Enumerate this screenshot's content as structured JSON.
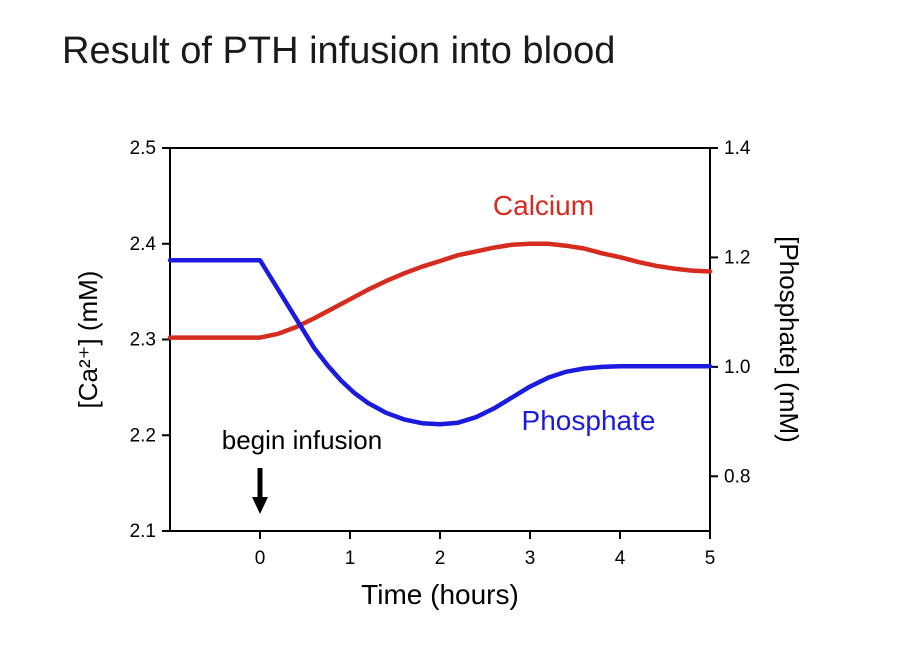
{
  "chart_data": {
    "type": "line",
    "title": "Result of PTH infusion into blood",
    "xlabel": "Time (hours)",
    "x_axis": {
      "lim": [
        -1,
        5
      ],
      "ticks": [
        0,
        1,
        2,
        3,
        4,
        5
      ]
    },
    "left_axis": {
      "label": "[Ca²⁺] (mM)",
      "lim": [
        2.1,
        2.5
      ],
      "ticks": [
        2.1,
        2.2,
        2.3,
        2.4,
        2.5
      ]
    },
    "right_axis": {
      "label": "[Phosphate] (mM)",
      "lim": [
        0.7,
        1.4
      ],
      "ticks": [
        0.8,
        1.0,
        1.2,
        1.4
      ]
    },
    "annotation": {
      "text": "begin infusion",
      "x": 0
    },
    "legend_position": "inline-labels",
    "grid": false,
    "series": [
      {
        "name": "Calcium",
        "axis": "left",
        "color": "#d62b1f",
        "label_pos": {
          "x": 3.15,
          "y": 2.43
        },
        "points": [
          [
            -1,
            2.302
          ],
          [
            -0.5,
            2.302
          ],
          [
            0,
            2.302
          ],
          [
            0.2,
            2.306
          ],
          [
            0.4,
            2.313
          ],
          [
            0.6,
            2.322
          ],
          [
            0.8,
            2.332
          ],
          [
            1.0,
            2.342
          ],
          [
            1.2,
            2.352
          ],
          [
            1.4,
            2.361
          ],
          [
            1.6,
            2.369
          ],
          [
            1.8,
            2.376
          ],
          [
            2.0,
            2.382
          ],
          [
            2.2,
            2.388
          ],
          [
            2.4,
            2.392
          ],
          [
            2.6,
            2.396
          ],
          [
            2.8,
            2.399
          ],
          [
            3.0,
            2.4
          ],
          [
            3.2,
            2.4
          ],
          [
            3.4,
            2.398
          ],
          [
            3.6,
            2.395
          ],
          [
            3.8,
            2.39
          ],
          [
            4.0,
            2.386
          ],
          [
            4.2,
            2.381
          ],
          [
            4.4,
            2.377
          ],
          [
            4.6,
            2.374
          ],
          [
            4.8,
            2.372
          ],
          [
            5.0,
            2.371
          ]
        ]
      },
      {
        "name": "Phosphate",
        "axis": "right",
        "color": "#1b1be0",
        "label_pos": {
          "x": 3.65,
          "y": 0.885
        },
        "points": [
          [
            -1,
            1.195
          ],
          [
            -0.5,
            1.195
          ],
          [
            0,
            1.195
          ],
          [
            0.15,
            1.155
          ],
          [
            0.3,
            1.115
          ],
          [
            0.45,
            1.075
          ],
          [
            0.6,
            1.035
          ],
          [
            0.75,
            1.003
          ],
          [
            0.9,
            0.975
          ],
          [
            1.05,
            0.952
          ],
          [
            1.2,
            0.934
          ],
          [
            1.4,
            0.916
          ],
          [
            1.6,
            0.904
          ],
          [
            1.8,
            0.897
          ],
          [
            2.0,
            0.895
          ],
          [
            2.2,
            0.898
          ],
          [
            2.4,
            0.908
          ],
          [
            2.6,
            0.924
          ],
          [
            2.8,
            0.944
          ],
          [
            3.0,
            0.964
          ],
          [
            3.2,
            0.98
          ],
          [
            3.4,
            0.991
          ],
          [
            3.6,
            0.997
          ],
          [
            3.8,
            1.0
          ],
          [
            4.0,
            1.001
          ],
          [
            4.5,
            1.001
          ],
          [
            5.0,
            1.001
          ]
        ]
      }
    ]
  }
}
